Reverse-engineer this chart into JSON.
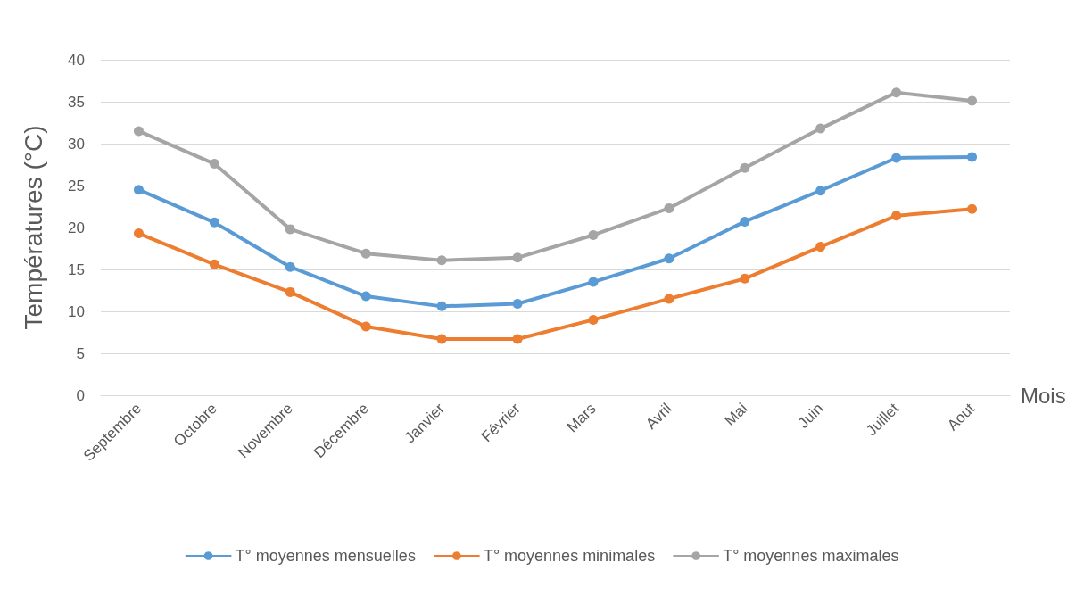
{
  "chart_data": {
    "type": "line",
    "xlabel": "Mois",
    "ylabel": "Températures (°C)",
    "categories": [
      "Septembre",
      "Octobre",
      "Novembre",
      "Décembre",
      "Janvier",
      "Février",
      "Mars",
      "Avril",
      "Mai",
      "Juin",
      "Juillet",
      "Aout"
    ],
    "series": [
      {
        "name": "T° moyennes mensuelles",
        "color": "#5b9bd5",
        "values": [
          24.5,
          20.6,
          15.3,
          11.8,
          10.6,
          10.9,
          13.5,
          16.3,
          20.7,
          24.4,
          28.3,
          28.4
        ]
      },
      {
        "name": "T° moyennes minimales",
        "color": "#ed7d31",
        "values": [
          19.3,
          15.6,
          12.3,
          8.2,
          6.7,
          6.7,
          9.0,
          11.5,
          13.9,
          17.7,
          21.4,
          22.2
        ]
      },
      {
        "name": "T° moyennes maximales",
        "color": "#a5a5a5",
        "values": [
          31.5,
          27.6,
          19.8,
          16.9,
          16.1,
          16.4,
          19.1,
          22.3,
          27.1,
          31.8,
          36.1,
          35.1
        ]
      }
    ],
    "ylim": [
      0,
      40
    ],
    "yticks": [
      0,
      5,
      10,
      15,
      20,
      25,
      30,
      35,
      40
    ],
    "grid": "y",
    "legend": "bottom",
    "marker": "circle",
    "line_style": "solid"
  }
}
